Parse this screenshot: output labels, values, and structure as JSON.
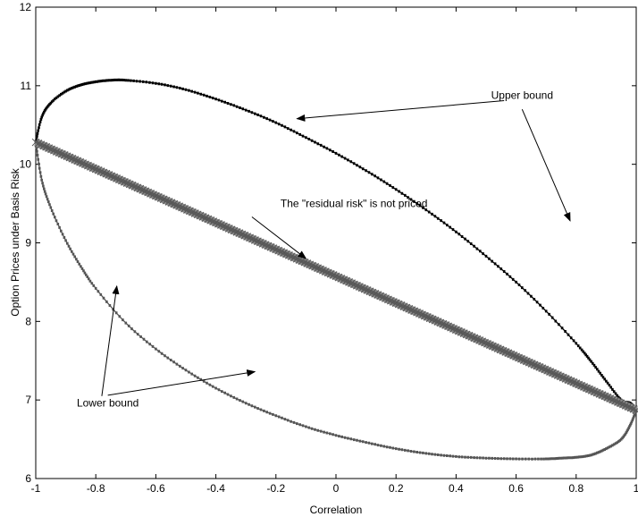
{
  "chart_data": {
    "type": "line",
    "xlabel": "Correlation",
    "ylabel": "Option Prices under Basis Risk",
    "xlim": [
      -1,
      1
    ],
    "ylim": [
      6,
      12
    ],
    "x_ticks": [
      -1,
      -0.8,
      -0.6,
      -0.4,
      -0.2,
      0,
      0.2,
      0.4,
      0.6,
      0.8,
      1
    ],
    "x_tick_labels": [
      "-1",
      "-0.8",
      "-0.6",
      "-0.4",
      "-0.2",
      "0",
      "0.2",
      "0.4",
      "0.6",
      "0.8",
      "1"
    ],
    "y_ticks": [
      6,
      7,
      8,
      9,
      10,
      11,
      12
    ],
    "y_tick_labels": [
      "6",
      "7",
      "8",
      "9",
      "10",
      "11",
      "12"
    ],
    "grid": false,
    "series": [
      {
        "key": "upper",
        "color": "#000000",
        "marker": "dot",
        "x": [
          -1,
          -0.98,
          -0.95,
          -0.9,
          -0.85,
          -0.8,
          -0.75,
          -0.7,
          -0.6,
          -0.5,
          -0.4,
          -0.3,
          -0.2,
          -0.1,
          0,
          0.1,
          0.2,
          0.3,
          0.4,
          0.5,
          0.6,
          0.7,
          0.8,
          0.85,
          0.9,
          0.95,
          0.98,
          1
        ],
        "values": [
          10.28,
          10.6,
          10.78,
          10.93,
          11.01,
          11.05,
          11.07,
          11.07,
          11.03,
          10.95,
          10.83,
          10.69,
          10.53,
          10.34,
          10.14,
          9.92,
          9.68,
          9.42,
          9.14,
          8.83,
          8.5,
          8.13,
          7.72,
          7.49,
          7.24,
          7.0,
          6.96,
          6.87
        ]
      },
      {
        "key": "lower",
        "color": "#555555",
        "marker": "dot",
        "x": [
          -1,
          -0.98,
          -0.95,
          -0.9,
          -0.85,
          -0.8,
          -0.7,
          -0.6,
          -0.5,
          -0.4,
          -0.3,
          -0.2,
          -0.1,
          0,
          0.1,
          0.2,
          0.3,
          0.4,
          0.5,
          0.6,
          0.7,
          0.75,
          0.8,
          0.85,
          0.9,
          0.95,
          0.98,
          1
        ],
        "values": [
          10.28,
          9.8,
          9.45,
          9.03,
          8.7,
          8.42,
          7.98,
          7.65,
          7.38,
          7.15,
          6.96,
          6.8,
          6.66,
          6.55,
          6.46,
          6.38,
          6.32,
          6.28,
          6.26,
          6.25,
          6.25,
          6.26,
          6.27,
          6.3,
          6.38,
          6.5,
          6.68,
          6.87
        ]
      },
      {
        "key": "residual",
        "color": "#888888",
        "marker": "x",
        "x": [
          -1,
          1
        ],
        "values": [
          10.28,
          6.87
        ]
      }
    ],
    "annotations": [
      {
        "text": "Upper bound",
        "x": 0.62,
        "y": 10.88,
        "arrows": [
          [
            0.56,
            10.81,
            -0.13,
            10.58
          ],
          [
            0.62,
            10.7,
            0.78,
            9.28
          ]
        ]
      },
      {
        "text": "The \"residual risk\" is not priced",
        "x": 0.06,
        "y": 9.5,
        "arrows": [
          [
            -0.28,
            9.33,
            -0.1,
            8.8
          ]
        ]
      },
      {
        "text": "Lower bound",
        "x": -0.76,
        "y": 6.96,
        "arrows": [
          [
            -0.78,
            7.05,
            -0.73,
            8.45
          ],
          [
            -0.76,
            7.06,
            -0.27,
            7.36
          ]
        ]
      }
    ]
  }
}
